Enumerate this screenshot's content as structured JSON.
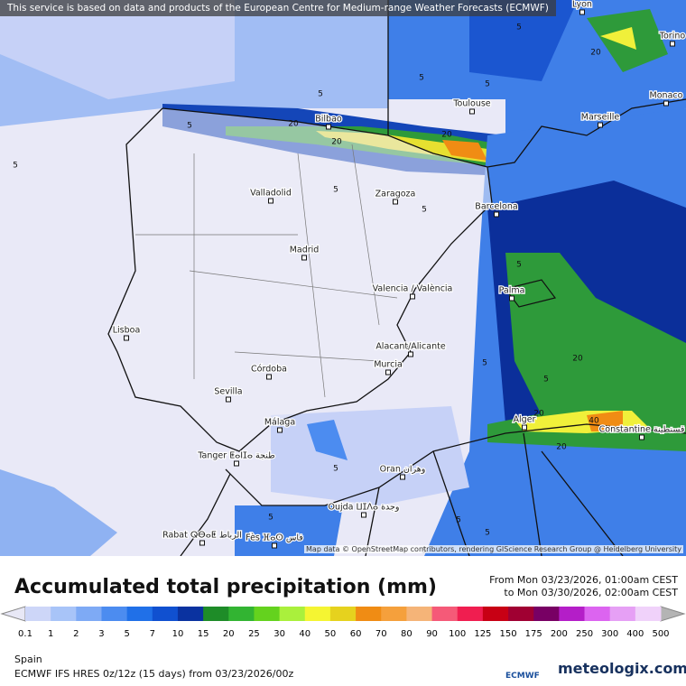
{
  "header": {
    "attribution": "This service is based on data and products of the European Centre for Medium-range Weather Forecasts (ECMWF)"
  },
  "map": {
    "cities": [
      "Lyon",
      "Torino",
      "Monaco",
      "Toulouse",
      "Marseille",
      "Bilbao",
      "Valladolid",
      "Zaragoza",
      "Barcelona",
      "Madrid",
      "Valencia / València",
      "Palma",
      "Lisboa",
      "Alacant/Alicante",
      "Murcia",
      "Córdoba",
      "Sevilla",
      "Málaga",
      "Tanger ⵟⴰⵏⵊⴰ طنجة",
      "Alger",
      "Constantine قسنطينة",
      "Oran وهران",
      "Oujda ⵡⵊⴷⴰ وجدة",
      "Rabat ⵕⴱⴰⵟ الرباط",
      "Fès ⴼⴰⵙ فاس"
    ],
    "contour_labels": [
      5,
      5,
      5,
      5,
      20,
      20,
      20,
      5,
      5,
      5,
      5,
      20,
      5,
      5,
      40,
      20,
      20,
      5,
      5,
      5,
      5,
      5,
      20,
      5
    ],
    "credit": "Map data © OpenStreetMap contributors, rendering GIScience Research Group @ Heidelberg University"
  },
  "footer": {
    "title": "Accumulated total precipitation (mm)",
    "period_from": "From Mon 03/23/2026, 01:00am CEST",
    "period_to": "to Mon 03/30/2026, 02:00am CEST",
    "scale": {
      "values": [
        0.1,
        1,
        2,
        3,
        5,
        7,
        10,
        15,
        20,
        25,
        30,
        40,
        50,
        60,
        70,
        80,
        90,
        100,
        125,
        150,
        175,
        200,
        250,
        300,
        400,
        500
      ],
      "below_color": "#e8e8f6",
      "above_color": "#b4b4b4",
      "colors": [
        "#cdd6f8",
        "#a8c4f8",
        "#7eaaf5",
        "#4c8cf0",
        "#2070e8",
        "#1050d0",
        "#0a32a0",
        "#1e8c28",
        "#32b432",
        "#64d21e",
        "#aaf03c",
        "#f5f532",
        "#e6d21e",
        "#f08c14",
        "#f5a03c",
        "#f5b478",
        "#f55a78",
        "#f01e50",
        "#c80014",
        "#a00032",
        "#780064",
        "#b41ec8",
        "#dc64f0",
        "#e6a0f5",
        "#f0d2fa"
      ]
    },
    "region": "Spain",
    "model": "ECMWF IFS HRES 0z/12z (15 days) from 03/23/2026/00z",
    "logo_ecmwf": "ECMWF",
    "logo_meteologix": "meteologix.com"
  }
}
